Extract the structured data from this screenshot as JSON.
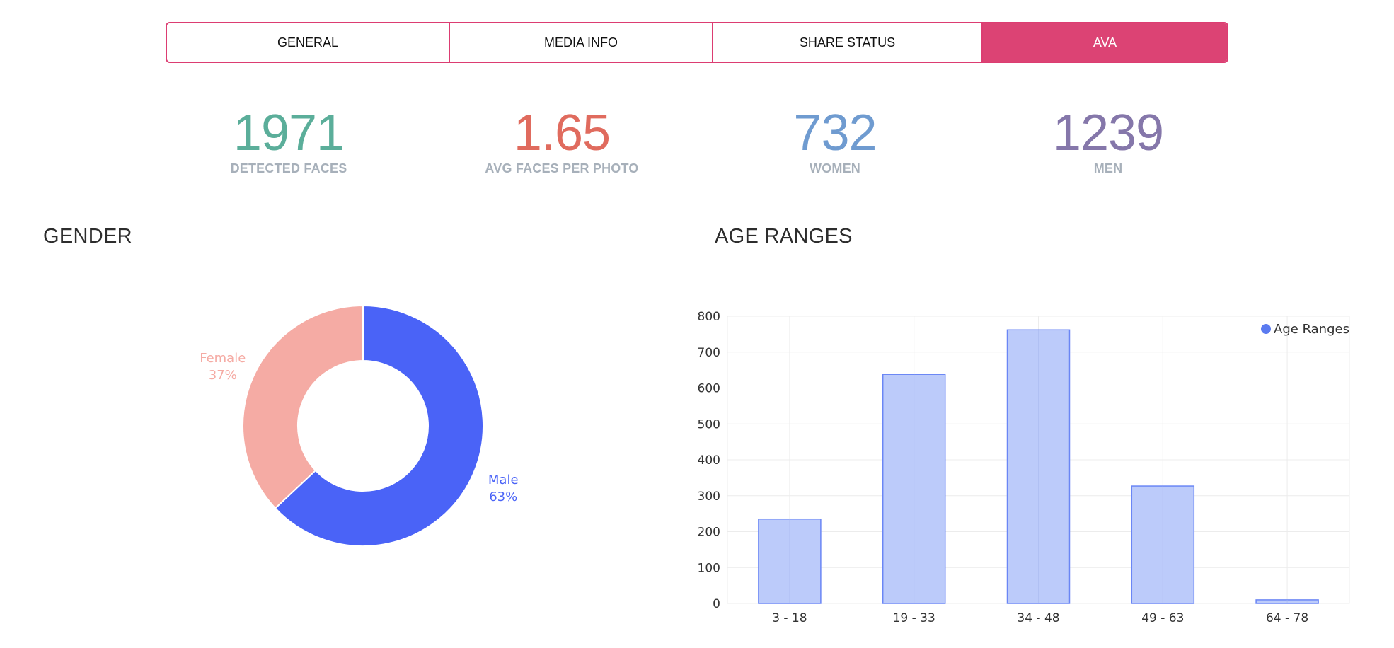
{
  "tabs": [
    {
      "label": "GENERAL",
      "active": false
    },
    {
      "label": "MEDIA INFO",
      "active": false
    },
    {
      "label": "SHARE STATUS",
      "active": false
    },
    {
      "label": "AVA",
      "active": true
    }
  ],
  "stats": [
    {
      "value": "1971",
      "label": "DETECTED FACES",
      "color": "#5bae9a"
    },
    {
      "value": "1.65",
      "label": "AVG FACES PER PHOTO",
      "color": "#e06b5e"
    },
    {
      "value": "732",
      "label": "WOMEN",
      "color": "#6f9bd0"
    },
    {
      "value": "1239",
      "label": "MEN",
      "color": "#8577aa"
    }
  ],
  "gender": {
    "title": "GENDER"
  },
  "age": {
    "title": "AGE RANGES"
  },
  "chart_data": [
    {
      "type": "pie",
      "title": "GENDER",
      "donut": true,
      "slices": [
        {
          "label": "Male",
          "percent_label": "63%",
          "value": 63,
          "color": "#4a63f7"
        },
        {
          "label": "Female",
          "percent_label": "37%",
          "value": 37,
          "color": "#f5aba4"
        }
      ]
    },
    {
      "type": "bar",
      "title": "AGE RANGES",
      "categories": [
        "3 - 18",
        "19 - 33",
        "34 - 48",
        "49 - 63",
        "64 - 78"
      ],
      "values": [
        235,
        638,
        762,
        327,
        10
      ],
      "series_name": "Age Ranges",
      "legend": "top-right",
      "ylim": [
        0,
        800
      ],
      "yticks": [
        0,
        100,
        200,
        300,
        400,
        500,
        600,
        700,
        800
      ],
      "bar_fill": "#bccbfa",
      "bar_stroke": "#6a86f5",
      "legend_color": "#5b7bf0",
      "grid": true
    }
  ]
}
